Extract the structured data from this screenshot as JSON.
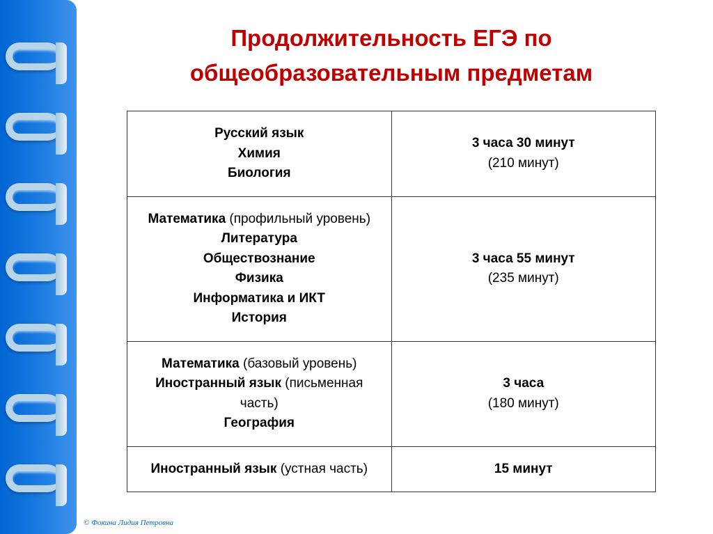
{
  "title": "Продолжительность ЕГЭ по общеобразовательным предметам",
  "table": {
    "rows": [
      {
        "subjects_html": "<span class='bold'>Русский язык</span><br><span class='bold'>Химия</span><br><span class='bold'>Биология</span>",
        "duration_main": "3 часа 30 минут",
        "duration_sub": "(210 минут)"
      },
      {
        "subjects_html": "<span class='bold'>Математика</span> <span class='normal'>(профильный уровень)</span><br><span class='bold'>Литература</span><br><span class='bold'>Обществознание</span><br><span class='bold'>Физика</span><br><span class='bold'>Информатика и ИКТ</span><br><span class='bold'>История</span>",
        "duration_main": "3 часа 55 минут",
        "duration_sub": "(235 минут)"
      },
      {
        "subjects_html": "<span class='bold'>Математика</span> <span class='normal'>(базовый уровень)</span><br><span class='bold'>Иностранный язык</span> <span class='normal'>(письменная часть)</span><br><span class='bold'>География</span>",
        "duration_main": "3 часа",
        "duration_sub": "(180 минут)"
      },
      {
        "subjects_html": "<span class='bold'>Иностранный язык</span> <span class='normal'>(устная часть)</span>",
        "duration_main": "15 минут",
        "duration_sub": ""
      }
    ]
  },
  "colors": {
    "title_color": "#c00000",
    "border_gradient_start": "#0066d4",
    "border_gradient_end": "#3d94ec",
    "table_border": "#333333",
    "text_color": "#000000",
    "background": "#ffffff"
  },
  "copyright": "© Фокина Лидия Петровна"
}
